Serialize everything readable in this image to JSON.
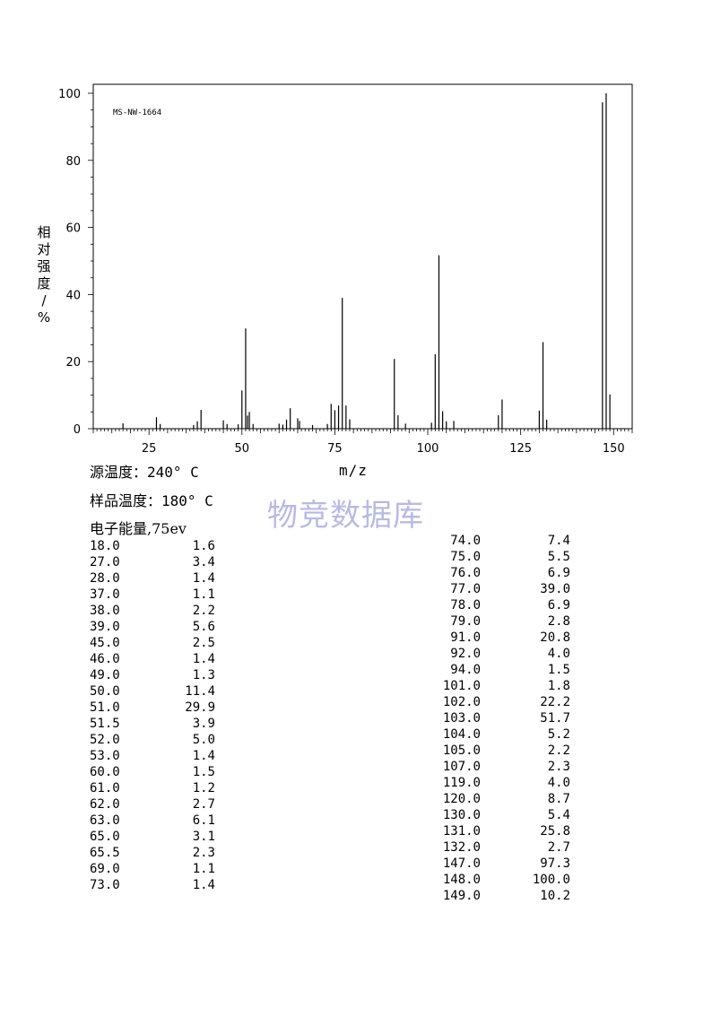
{
  "chart_data": {
    "type": "bar",
    "annotation": "MS-NW-1664",
    "xlabel": "m/z",
    "ylabel": "相对强度/%",
    "xlim": [
      10,
      155
    ],
    "ylim": [
      0,
      100
    ],
    "xticks": [
      25,
      50,
      75,
      100,
      125,
      150
    ],
    "yticks": [
      0,
      20,
      40,
      60,
      80,
      100
    ],
    "grid": false,
    "x": [
      18.0,
      27.0,
      28.0,
      37.0,
      38.0,
      39.0,
      45.0,
      46.0,
      49.0,
      50.0,
      51.0,
      51.5,
      52.0,
      53.0,
      60.0,
      61.0,
      62.0,
      63.0,
      65.0,
      65.5,
      69.0,
      73.0,
      74.0,
      75.0,
      76.0,
      77.0,
      78.0,
      79.0,
      91.0,
      92.0,
      94.0,
      101.0,
      102.0,
      103.0,
      104.0,
      105.0,
      107.0,
      119.0,
      120.0,
      130.0,
      131.0,
      132.0,
      147.0,
      148.0,
      149.0
    ],
    "values": [
      1.6,
      3.4,
      1.4,
      1.1,
      2.2,
      5.6,
      2.5,
      1.4,
      1.3,
      11.4,
      29.9,
      3.9,
      5.0,
      1.4,
      1.5,
      1.2,
      2.7,
      6.1,
      3.1,
      2.3,
      1.1,
      1.4,
      7.4,
      5.5,
      6.9,
      39.0,
      6.9,
      2.8,
      20.8,
      4.0,
      1.5,
      1.8,
      22.2,
      51.7,
      5.2,
      2.2,
      2.3,
      4.0,
      8.7,
      5.4,
      25.8,
      2.7,
      97.3,
      100.0,
      10.2
    ]
  },
  "info": {
    "source_temp_label": "源温度：",
    "source_temp_value": "240° C",
    "sample_temp_label": "样品温度：",
    "sample_temp_value": "180° C",
    "energy_label": "电子能量,",
    "energy_value": "75ev"
  },
  "watermark": "物竞数据库",
  "table_left": [
    [
      "18.0",
      "1.6"
    ],
    [
      "27.0",
      "3.4"
    ],
    [
      "28.0",
      "1.4"
    ],
    [
      "37.0",
      "1.1"
    ],
    [
      "38.0",
      "2.2"
    ],
    [
      "39.0",
      "5.6"
    ],
    [
      "45.0",
      "2.5"
    ],
    [
      "46.0",
      "1.4"
    ],
    [
      "49.0",
      "1.3"
    ],
    [
      "50.0",
      "11.4"
    ],
    [
      "51.0",
      "29.9"
    ],
    [
      "51.5",
      "3.9"
    ],
    [
      "52.0",
      "5.0"
    ],
    [
      "53.0",
      "1.4"
    ],
    [
      "60.0",
      "1.5"
    ],
    [
      "61.0",
      "1.2"
    ],
    [
      "62.0",
      "2.7"
    ],
    [
      "63.0",
      "6.1"
    ],
    [
      "65.0",
      "3.1"
    ],
    [
      "65.5",
      "2.3"
    ],
    [
      "69.0",
      "1.1"
    ],
    [
      "73.0",
      "1.4"
    ]
  ],
  "table_right": [
    [
      "74.0",
      "7.4"
    ],
    [
      "75.0",
      "5.5"
    ],
    [
      "76.0",
      "6.9"
    ],
    [
      "77.0",
      "39.0"
    ],
    [
      "78.0",
      "6.9"
    ],
    [
      "79.0",
      "2.8"
    ],
    [
      "91.0",
      "20.8"
    ],
    [
      "92.0",
      "4.0"
    ],
    [
      "94.0",
      "1.5"
    ],
    [
      "101.0",
      "1.8"
    ],
    [
      "102.0",
      "22.2"
    ],
    [
      "103.0",
      "51.7"
    ],
    [
      "104.0",
      "5.2"
    ],
    [
      "105.0",
      "2.2"
    ],
    [
      "107.0",
      "2.3"
    ],
    [
      "119.0",
      "4.0"
    ],
    [
      "120.0",
      "8.7"
    ],
    [
      "130.0",
      "5.4"
    ],
    [
      "131.0",
      "25.8"
    ],
    [
      "132.0",
      "2.7"
    ],
    [
      "147.0",
      "97.3"
    ],
    [
      "148.0",
      "100.0"
    ],
    [
      "149.0",
      "10.2"
    ]
  ]
}
